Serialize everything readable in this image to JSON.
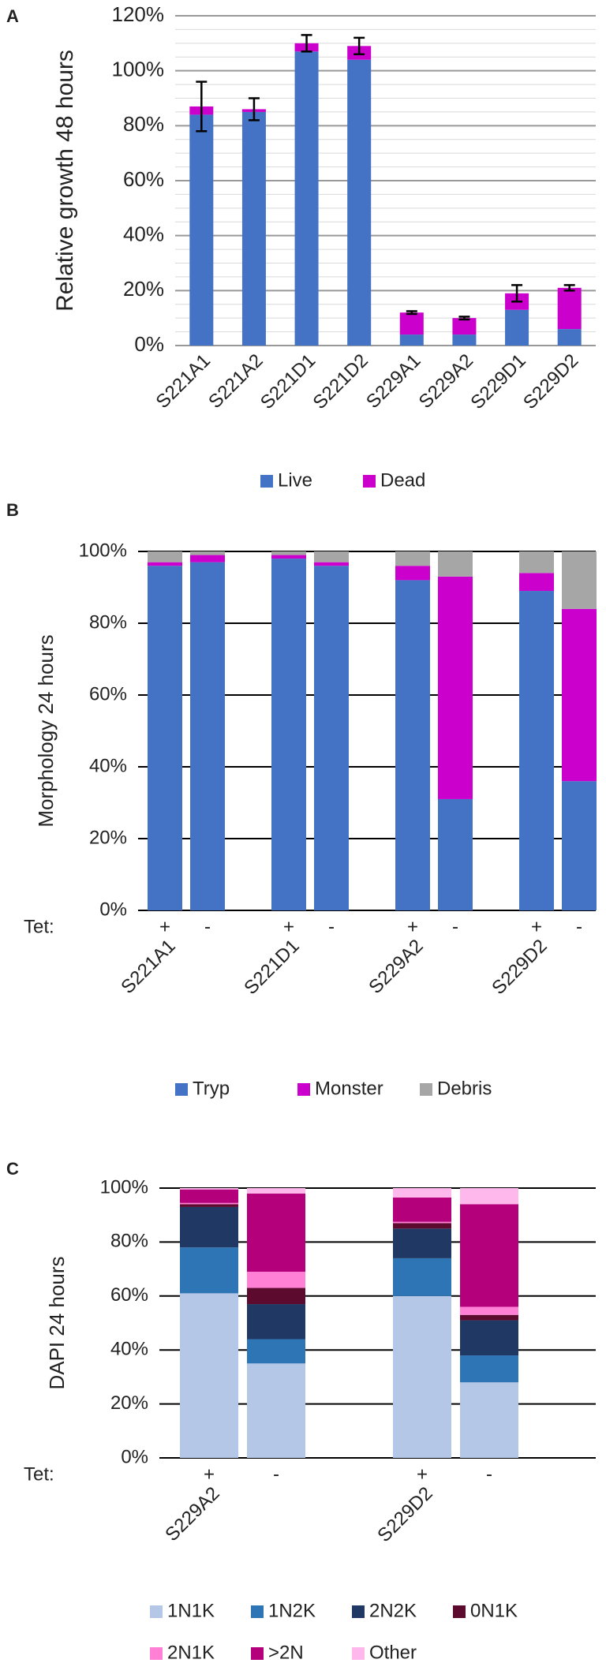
{
  "chart_data": [
    {
      "type": "bar",
      "stacked": true,
      "panel": "A",
      "ylabel": "Relative growth 48 hours",
      "categories": [
        "S221A1",
        "S221A2",
        "S221D1",
        "S221D2",
        "S229A1",
        "S229A2",
        "S229D1",
        "S229D2"
      ],
      "series": [
        {
          "name": "Live",
          "color": "#4472c4",
          "values": [
            84,
            85,
            107,
            104,
            4,
            4,
            13,
            6
          ]
        },
        {
          "name": "Dead",
          "color": "#cc00cc",
          "values": [
            3,
            1,
            3,
            5,
            8,
            6,
            6,
            15
          ]
        }
      ],
      "errors": [
        9,
        4,
        3,
        3,
        0.5,
        0.5,
        3,
        1
      ],
      "ylim": [
        0,
        120
      ],
      "yticks": [
        {
          "value": 0,
          "label": "0%"
        },
        {
          "value": 20,
          "label": "20%"
        },
        {
          "value": 40,
          "label": "40%"
        },
        {
          "value": 60,
          "label": "60%"
        },
        {
          "value": 80,
          "label": "80%"
        },
        {
          "value": 100,
          "label": "100%"
        },
        {
          "value": 120,
          "label": "120%"
        }
      ],
      "minor_yticks": [
        5,
        10,
        15,
        25,
        30,
        35,
        45,
        50,
        55,
        65,
        70,
        75,
        85,
        90,
        95,
        105,
        110,
        115
      ],
      "grid": true,
      "grid_color": "#999999",
      "minor_grid_color": "#d9d9d9",
      "legend": "bottom"
    },
    {
      "type": "bar",
      "stacked": true,
      "panel": "B",
      "ylabel": "Morphology 24 hours",
      "row_label": "Tet:",
      "categories": [
        "+",
        "-",
        "+",
        "-",
        "+",
        "-",
        "+",
        "-"
      ],
      "groups": [
        "S221A1",
        "S221D1",
        "S229A2",
        "S229D2"
      ],
      "series": [
        {
          "name": "Tryp",
          "color": "#4472c4",
          "values": [
            96,
            97,
            98,
            96,
            92,
            31,
            89,
            36
          ]
        },
        {
          "name": "Monster",
          "color": "#cc00cc",
          "values": [
            1,
            2,
            1,
            1,
            4,
            62,
            5,
            48
          ]
        },
        {
          "name": "Debris",
          "color": "#a6a6a6",
          "values": [
            3,
            1,
            1,
            3,
            4,
            7,
            6,
            16
          ]
        }
      ],
      "ylim": [
        0,
        100
      ],
      "yticks": [
        {
          "value": 0,
          "label": "0%"
        },
        {
          "value": 20,
          "label": "20%"
        },
        {
          "value": 40,
          "label": "40%"
        },
        {
          "value": 60,
          "label": "60%"
        },
        {
          "value": 80,
          "label": "80%"
        },
        {
          "value": 100,
          "label": "100%"
        }
      ],
      "grid": true,
      "grid_color": "#000000",
      "legend": "bottom"
    },
    {
      "type": "bar",
      "stacked": true,
      "panel": "C",
      "ylabel": "DAPI 24 hours",
      "row_label": "Tet:",
      "categories": [
        "+",
        "-",
        "+",
        "-"
      ],
      "groups": [
        "S229A2",
        "S229D2"
      ],
      "series": [
        {
          "name": "1N1K",
          "color": "#b4c7e7",
          "values": [
            61,
            35,
            60,
            28
          ]
        },
        {
          "name": "1N2K",
          "color": "#2e75b6",
          "values": [
            17,
            9,
            14,
            10
          ]
        },
        {
          "name": "2N2K",
          "color": "#203864",
          "values": [
            15,
            13,
            11,
            13
          ]
        },
        {
          "name": "0N1K",
          "color": "#5c0a2e",
          "values": [
            1,
            6,
            2,
            2
          ]
        },
        {
          "name": "2N1K",
          "color": "#ff80d5",
          "values": [
            0.5,
            6,
            0.5,
            3
          ]
        },
        {
          "name": ">2N",
          "color": "#b4007a",
          "values": [
            5,
            29,
            9,
            38
          ]
        },
        {
          "name": "Other",
          "color": "#ffb8ec",
          "values": [
            0.5,
            2,
            3.5,
            6
          ]
        }
      ],
      "ylim": [
        0,
        100
      ],
      "yticks": [
        {
          "value": 0,
          "label": "0%"
        },
        {
          "value": 20,
          "label": "20%"
        },
        {
          "value": 40,
          "label": "40%"
        },
        {
          "value": 60,
          "label": "60%"
        },
        {
          "value": 80,
          "label": "80%"
        },
        {
          "value": 100,
          "label": "100%"
        }
      ],
      "grid": true,
      "grid_color": "#000000",
      "legend": "bottom"
    }
  ]
}
